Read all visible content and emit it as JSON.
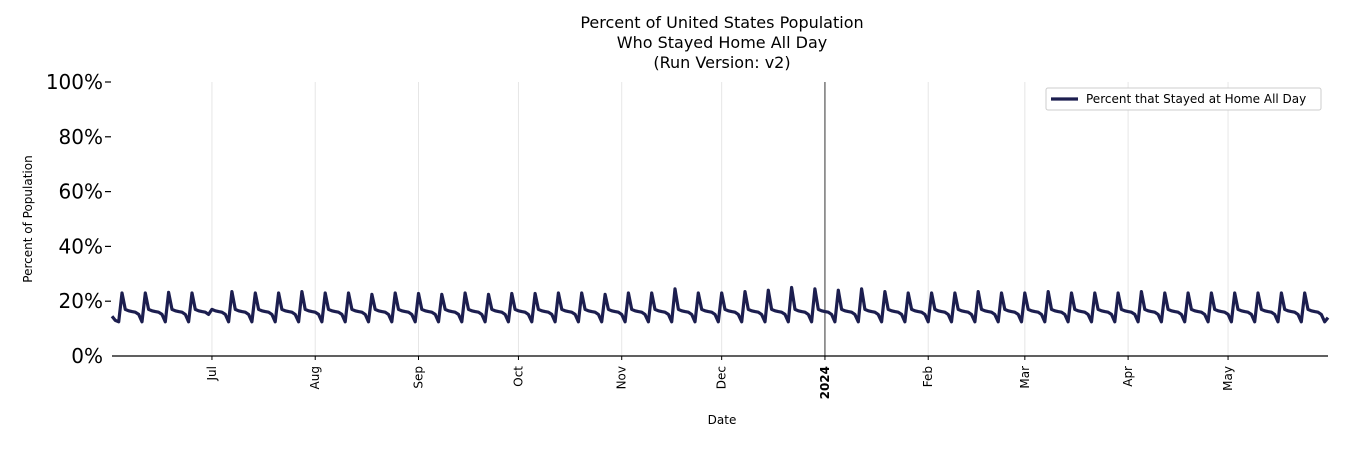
{
  "chart_data": {
    "type": "line",
    "title": [
      "Percent of United States Population",
      "Who Stayed Home All Day",
      "(Run Version: v2)"
    ],
    "xlabel": "Date",
    "ylabel": "Percent of Population",
    "xlim": [
      "2023-06-01",
      "2024-05-31"
    ],
    "ylim": [
      0,
      100
    ],
    "y_ticks": [
      "0%",
      "20%",
      "40%",
      "60%",
      "80%",
      "100%"
    ],
    "x_ticks": [
      {
        "date": "2023-07-01",
        "label": "Jul",
        "bold": false
      },
      {
        "date": "2023-08-01",
        "label": "Aug",
        "bold": false
      },
      {
        "date": "2023-09-01",
        "label": "Sep",
        "bold": false
      },
      {
        "date": "2023-10-01",
        "label": "Oct",
        "bold": false
      },
      {
        "date": "2023-11-01",
        "label": "Nov",
        "bold": false
      },
      {
        "date": "2023-12-01",
        "label": "Dec",
        "bold": false
      },
      {
        "date": "2024-01-01",
        "label": "2024",
        "bold": true
      },
      {
        "date": "2024-02-01",
        "label": "Feb",
        "bold": false
      },
      {
        "date": "2024-03-01",
        "label": "Mar",
        "bold": false
      },
      {
        "date": "2024-04-01",
        "label": "Apr",
        "bold": false
      },
      {
        "date": "2024-05-01",
        "label": "May",
        "bold": false
      }
    ],
    "grid": "vertical at month ticks",
    "legend_position": "top-right",
    "series": [
      {
        "name": "Percent that Stayed at Home All Day",
        "color": "#1c1e4f",
        "weekly_pattern_note": "values repeat with weekly cycle; peaks on weekend days",
        "x": [
          "2023-06-01",
          "2023-06-02",
          "2023-06-03",
          "2023-06-04",
          "2023-06-05",
          "2023-06-06",
          "2023-06-07",
          "2023-06-08",
          "2023-06-09",
          "2023-06-10",
          "2023-06-11",
          "2023-06-12",
          "2023-06-13",
          "2023-06-14",
          "2023-06-15",
          "2023-06-16",
          "2023-06-17",
          "2023-06-18",
          "2023-06-19",
          "2023-06-20",
          "2023-06-21",
          "2023-06-22",
          "2023-06-23",
          "2023-06-24",
          "2023-06-25",
          "2023-06-26",
          "2023-06-27",
          "2023-06-28",
          "2023-06-29",
          "2023-06-30"
        ],
        "values": [
          14.5,
          13.0,
          12.5,
          23.0,
          17.0,
          16.5,
          16.2,
          16.0,
          15.2,
          12.5,
          23.0,
          17.0,
          16.5,
          16.2,
          16.0,
          15.2,
          12.5,
          23.2,
          17.0,
          16.5,
          16.2,
          16.0,
          15.2,
          12.5,
          23.0,
          17.0,
          16.5,
          16.2,
          16.0,
          15.2
        ],
        "weekly_cycle": [
          17.0,
          16.5,
          16.2,
          16.0,
          15.2,
          12.5,
          23.0
        ],
        "weekly_peaks": [
          23.0,
          23.0,
          23.2,
          23.0,
          23.5,
          23.0,
          23.0,
          23.5,
          23.0,
          23.0,
          22.5,
          23.0,
          22.8,
          22.5,
          23.0,
          22.5,
          22.8,
          22.8,
          23.0,
          23.0,
          22.5,
          23.0,
          23.0,
          24.5,
          23.0,
          23.0,
          23.5,
          24.0,
          25.0,
          24.5,
          24.0,
          24.5,
          23.5,
          23.0,
          23.0,
          23.0,
          23.5,
          23.0,
          23.0,
          23.5,
          23.0,
          23.0,
          23.0,
          23.5,
          23.0,
          23.0,
          23.0,
          23.0,
          23.0,
          23.0,
          23.0,
          23.0
        ],
        "end_value": 14.0
      }
    ]
  }
}
